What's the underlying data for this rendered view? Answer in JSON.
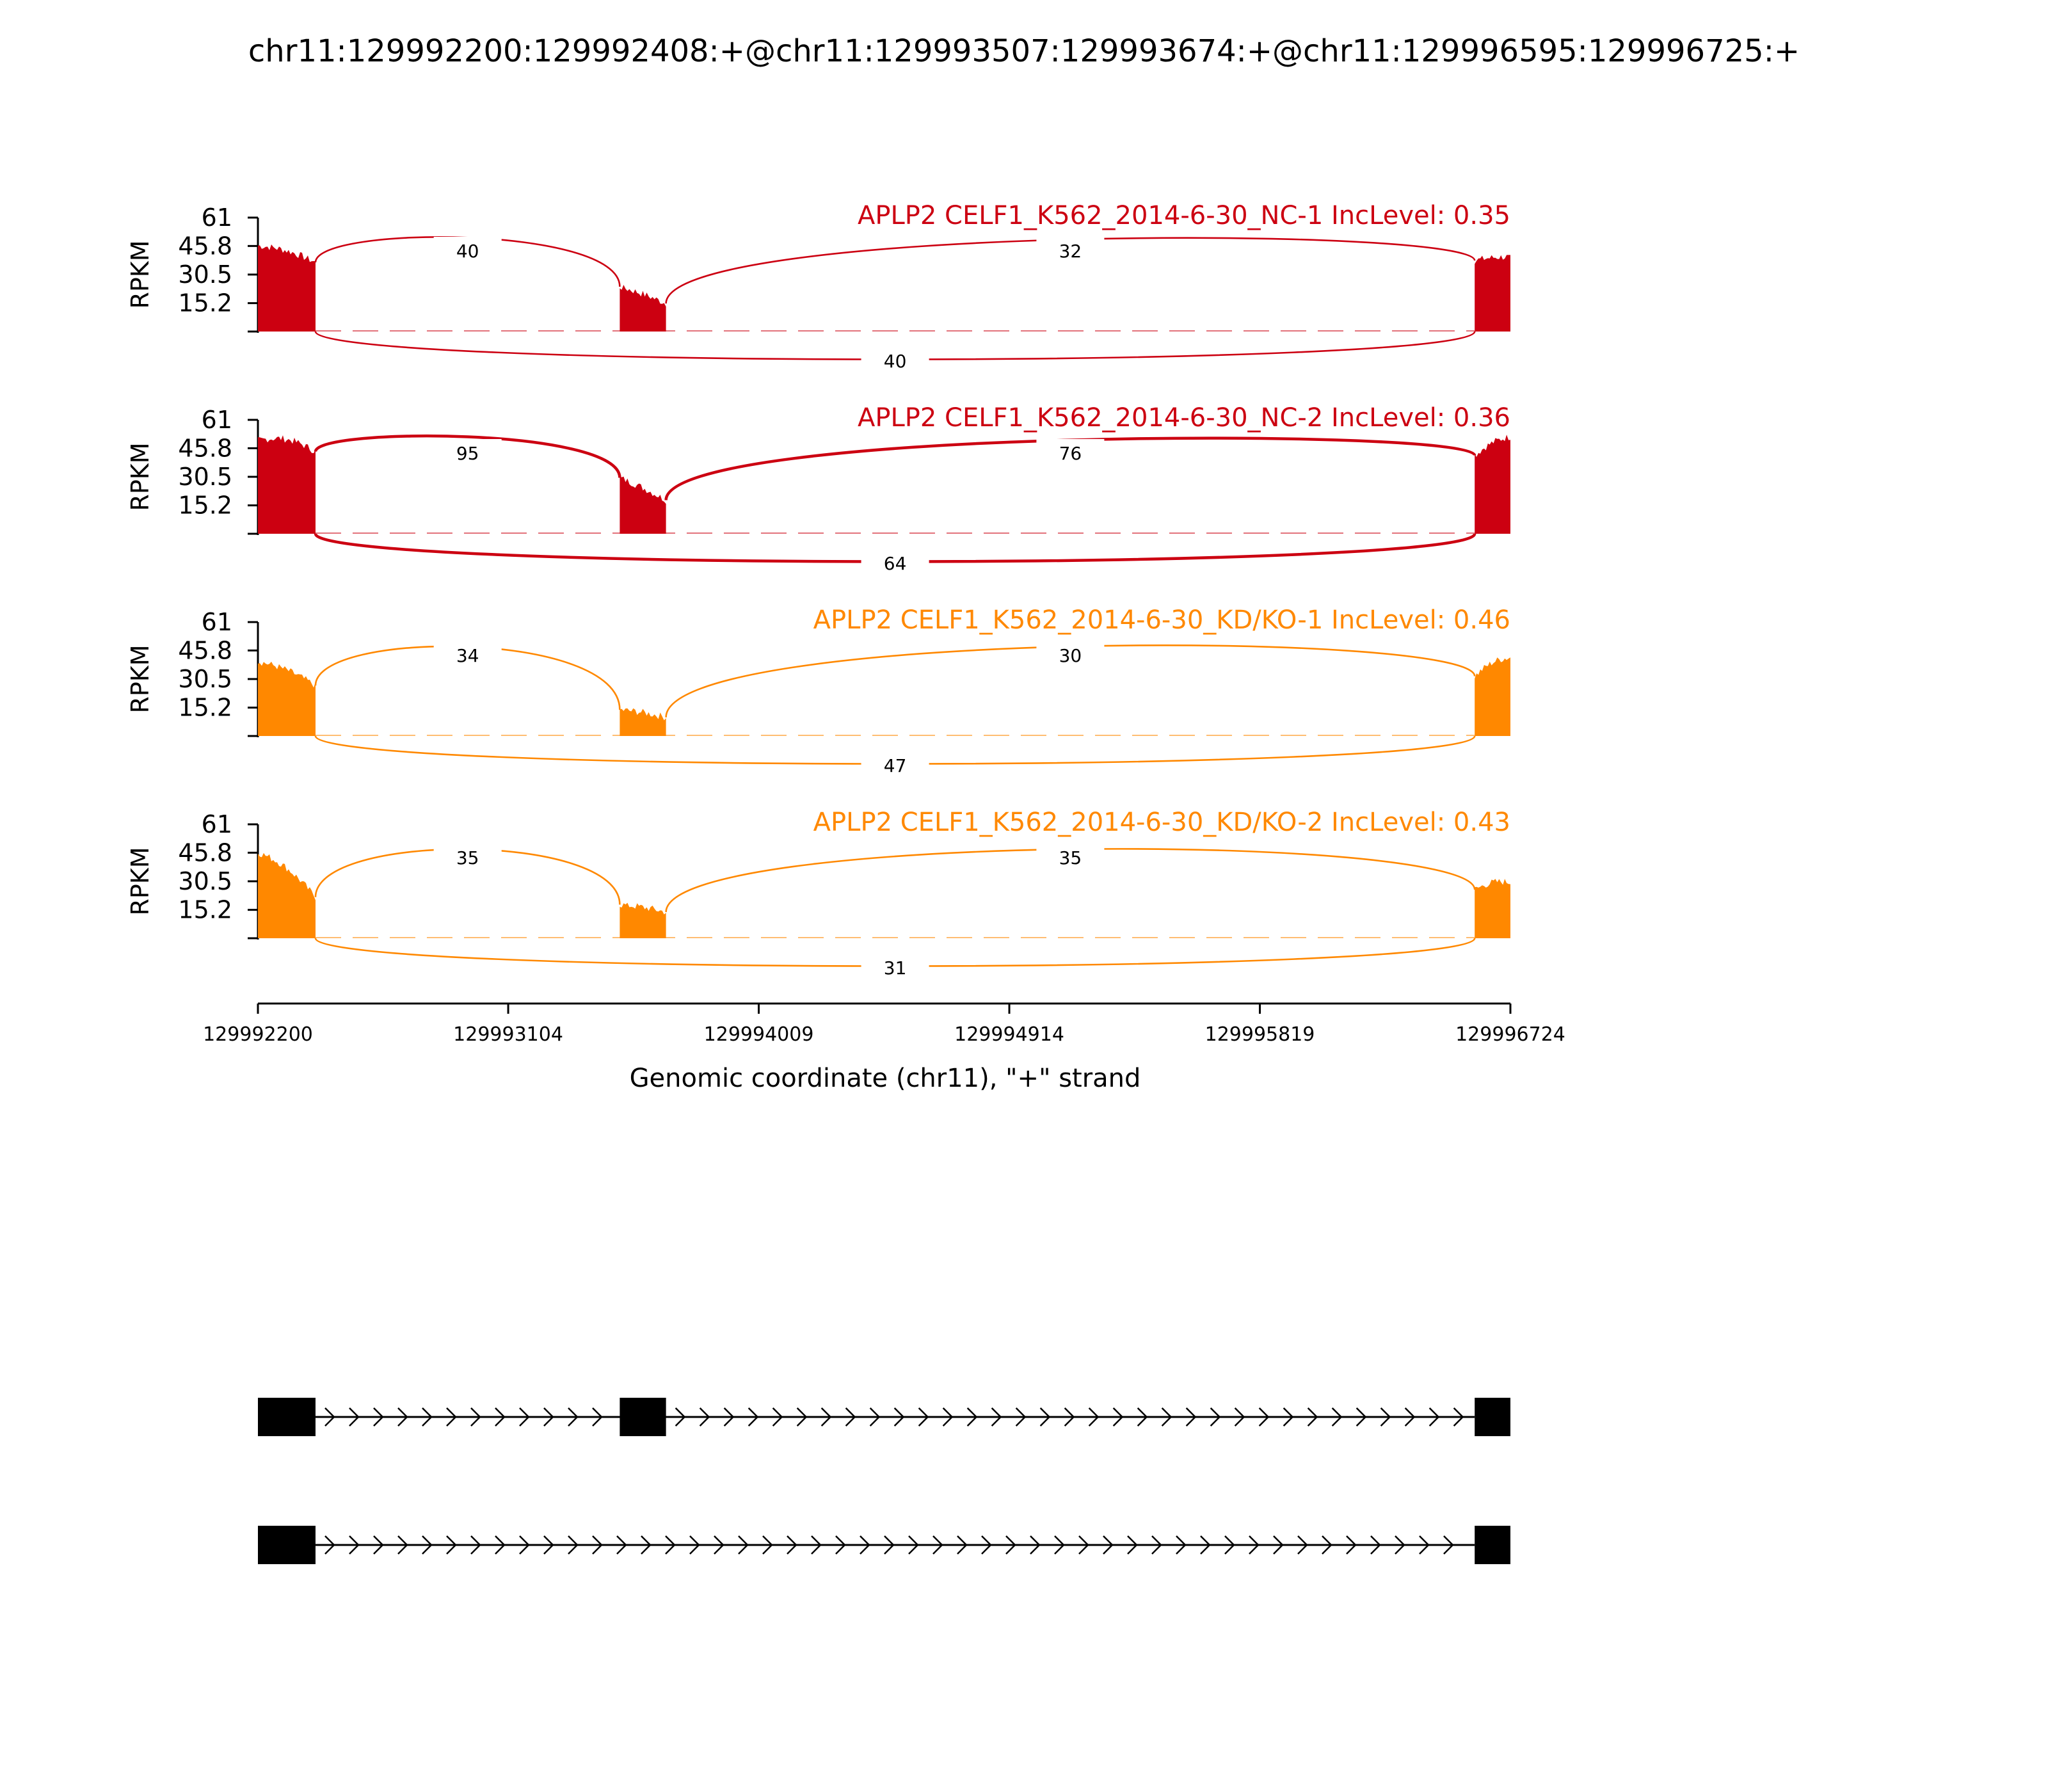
{
  "title": "chr11:129992200:129992408:+@chr11:129993507:129993674:+@chr11:129996595:129996725:+",
  "chart_data": {
    "type": "area",
    "title": "chr11:129992200:129992408:+@chr11:129993507:129993674:+@chr11:129996595:129996725:+",
    "xlabel": "Genomic coordinate (chr11), \"+\" strand",
    "ylabel": "RPKM",
    "xlim": [
      129992200,
      129996724
    ],
    "x_ticks": [
      "129992200",
      "129993104",
      "129994009",
      "129994914",
      "129995819",
      "129996724"
    ],
    "ylim": [
      0,
      61
    ],
    "y_ticks": [
      "15.2",
      "30.5",
      "45.8",
      "61"
    ],
    "exons": [
      [
        129992200,
        129992408
      ],
      [
        129993507,
        129993674
      ],
      [
        129996595,
        129996725
      ]
    ],
    "tracks": [
      {
        "label": "APLP2 CELF1_K562_2014-6-30_NC-1 IncLevel: 0.35",
        "color": "#cc0011",
        "exon_coverage": [
          {
            "start": 46,
            "end": 37,
            "max": 49
          },
          {
            "start": 24,
            "end": 15,
            "max": 25
          },
          {
            "start": 38,
            "end": 40,
            "max": 41
          }
        ],
        "junctions": [
          {
            "label": "40",
            "from": 129992408,
            "to": 129993507,
            "side": "top"
          },
          {
            "label": "32",
            "from": 129993674,
            "to": 129996595,
            "side": "top"
          },
          {
            "label": "40",
            "from": 129992408,
            "to": 129996595,
            "side": "bottom"
          }
        ]
      },
      {
        "label": "APLP2 CELF1_K562_2014-6-30_NC-2 IncLevel: 0.36",
        "color": "#cc0011",
        "exon_coverage": [
          {
            "start": 50,
            "end": 44,
            "max": 56
          },
          {
            "start": 30,
            "end": 18,
            "max": 31
          },
          {
            "start": 42,
            "end": 52,
            "max": 55
          }
        ],
        "junctions": [
          {
            "label": "95",
            "from": 129992408,
            "to": 129993507,
            "side": "top"
          },
          {
            "label": "76",
            "from": 129993674,
            "to": 129996595,
            "side": "top"
          },
          {
            "label": "64",
            "from": 129992408,
            "to": 129996595,
            "side": "bottom"
          }
        ]
      },
      {
        "label": "APLP2 CELF1_K562_2014-6-30_KD/KO-1 IncLevel: 0.46",
        "color": "#ff8800",
        "exon_coverage": [
          {
            "start": 40,
            "end": 27,
            "max": 43
          },
          {
            "start": 14,
            "end": 10,
            "max": 15
          },
          {
            "start": 32,
            "end": 42,
            "max": 46
          }
        ],
        "junctions": [
          {
            "label": "34",
            "from": 129992408,
            "to": 129993507,
            "side": "top"
          },
          {
            "label": "30",
            "from": 129993674,
            "to": 129996595,
            "side": "top"
          },
          {
            "label": "47",
            "from": 129992408,
            "to": 129996595,
            "side": "bottom"
          }
        ]
      },
      {
        "label": "APLP2 CELF1_K562_2014-6-30_KD/KO-2 IncLevel: 0.43",
        "color": "#ff8800",
        "exon_coverage": [
          {
            "start": 46,
            "end": 22,
            "max": 52
          },
          {
            "start": 18,
            "end": 14,
            "max": 19
          },
          {
            "start": 26,
            "end": 30,
            "max": 33
          }
        ],
        "junctions": [
          {
            "label": "35",
            "from": 129992408,
            "to": 129993507,
            "side": "top"
          },
          {
            "label": "35",
            "from": 129993674,
            "to": 129996595,
            "side": "top"
          },
          {
            "label": "31",
            "from": 129992408,
            "to": 129996595,
            "side": "bottom"
          }
        ]
      }
    ],
    "isoforms": [
      {
        "exons": [
          [
            129992200,
            129992408
          ],
          [
            129993507,
            129993674
          ],
          [
            129996595,
            129996725
          ]
        ]
      },
      {
        "exons": [
          [
            129992200,
            129992408
          ],
          [
            129996595,
            129996725
          ]
        ]
      }
    ]
  }
}
